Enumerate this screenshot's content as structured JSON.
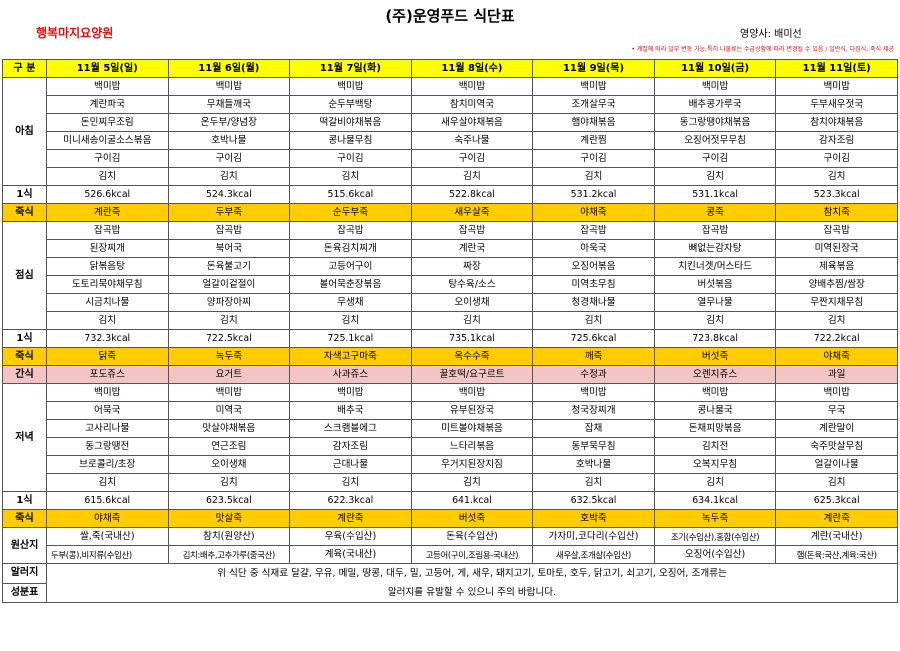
{
  "header": {
    "title": "(주)운영푸드 식단표",
    "facility": "행복마지요양원",
    "dietitian": "영양사: 배미선",
    "note": "• 계절에 따라 일부 변동 가능,특히 나물류는 수급상황에 따라 변경될 수 있음 / 일반식, 다짐식, 죽식 제공"
  },
  "columns": {
    "label": "구 분",
    "days": [
      "11월 5일(일)",
      "11월 6일(월)",
      "11월 7일(화)",
      "11월 8일(수)",
      "11월 9일(목)",
      "11월 10일(금)",
      "11월 11일(토)"
    ]
  },
  "breakfast": {
    "label": "아침",
    "rows": [
      [
        "백미밥",
        "백미밥",
        "백미밥",
        "백미밥",
        "백미밥",
        "백미밥",
        "백미밥"
      ],
      [
        "계란파국",
        "무채들깨국",
        "순두부백탕",
        "참치미역국",
        "조개살무국",
        "배추콩가루국",
        "두부새우젓국"
      ],
      [
        "돈민찌무조림",
        "온두부/양념장",
        "떡갈비야채볶음",
        "새우살야채볶음",
        "햄야채볶음",
        "동그랑땡야채볶음",
        "참치야채볶음"
      ],
      [
        "미니새송이굴소스볶음",
        "호박나물",
        "콩나물무침",
        "숙주나물",
        "계란찜",
        "오징어젓무무침",
        "감자조림"
      ],
      [
        "구이김",
        "구이김",
        "구이김",
        "구이김",
        "구이김",
        "구이김",
        "구이김"
      ],
      [
        "김치",
        "김치",
        "김치",
        "김치",
        "김치",
        "김치",
        "김치"
      ]
    ],
    "kcal_label": "1식",
    "kcal": [
      "526.6kcal",
      "524.3kcal",
      "515.6kcal",
      "522.8kcal",
      "531.2kcal",
      "531.1kcal",
      "523.3kcal"
    ],
    "porridge_label": "죽식",
    "porridge": [
      "계란죽",
      "두부죽",
      "순두부죽",
      "새우살죽",
      "야채죽",
      "콩죽",
      "참치죽"
    ]
  },
  "lunch": {
    "label": "점심",
    "rows": [
      [
        "잡곡밥",
        "잡곡밥",
        "잡곡밥",
        "잡곡밥",
        "잡곡밥",
        "잡곡밥",
        "잡곡밥"
      ],
      [
        "된장찌개",
        "북어국",
        "돈육김치찌개",
        "계란국",
        "아욱국",
        "뼈없는감자탕",
        "미역된장국"
      ],
      [
        "닭볶음탕",
        "돈육불고기",
        "고등어구이",
        "짜장",
        "오징어볶음",
        "치킨너겟/머스타드",
        "제육볶음"
      ],
      [
        "도토리묵야채무침",
        "얼갈이겉절이",
        "볼어묵춘장볶음",
        "탕수육/소스",
        "미역초무침",
        "버섯볶음",
        "양배추찜/쌈장"
      ],
      [
        "시금치나물",
        "양파장아찌",
        "무생채",
        "오이생채",
        "청경채나물",
        "열무나물",
        "무짠지채무침"
      ],
      [
        "김치",
        "김치",
        "김치",
        "김치",
        "김치",
        "김치",
        "김치"
      ]
    ],
    "kcal_label": "1식",
    "kcal": [
      "732.3kcal",
      "722.5kcal",
      "725.1kcal",
      "735.1kcal",
      "725.6kcal",
      "723.8kcal",
      "722.2kcal"
    ],
    "porridge_label": "죽식",
    "porridge": [
      "닭죽",
      "녹두죽",
      "자색고구마죽",
      "옥수수죽",
      "깨죽",
      "버섯죽",
      "야채죽"
    ]
  },
  "snack": {
    "label": "간식",
    "items": [
      "포도쥬스",
      "요거트",
      "사과쥬스",
      "꿀호떡/요구르트",
      "수정과",
      "오렌지쥬스",
      "과일"
    ]
  },
  "dinner": {
    "label": "저녁",
    "rows": [
      [
        "백미밥",
        "백미밥",
        "백미밥",
        "백미밥",
        "백미밥",
        "백미밥",
        "백미밥"
      ],
      [
        "어묵국",
        "미역국",
        "배추국",
        "유부된장국",
        "청국장찌개",
        "콩나물국",
        "무국"
      ],
      [
        "고사리나물",
        "맛살야채볶음",
        "스크램블에그",
        "미트볼야채볶음",
        "잡채",
        "돈채피망볶음",
        "계란말이"
      ],
      [
        "동그랑땡전",
        "연근조림",
        "감자조림",
        "느타리볶음",
        "동부묵무침",
        "김치전",
        "숙주맛살무침"
      ],
      [
        "브로콜리/초장",
        "오이생채",
        "근대나물",
        "우거지된장지짐",
        "호박나물",
        "오복지무침",
        "얼갈이나물"
      ],
      [
        "김치",
        "김치",
        "김치",
        "김치",
        "김치",
        "김치",
        "김치"
      ]
    ],
    "kcal_label": "1식",
    "kcal": [
      "615.6kcal",
      "623.5kcal",
      "622.3kcal",
      "641.kcal",
      "632.5kcal",
      "634.1kcal",
      "625.3kcal"
    ],
    "porridge_label": "죽식",
    "porridge": [
      "야채죽",
      "맛살죽",
      "계란죽",
      "버섯죽",
      "호박죽",
      "녹두죽",
      "계란죽"
    ]
  },
  "origin": {
    "label": "원산지",
    "row1": [
      "쌀,죽(국내산)",
      "참치(원양산)",
      "우육(수입산)",
      "돈육(수입산)",
      "가자미,코다리(수입산)",
      "조기(수입산),홍합(수입산)",
      "계란(국내산)"
    ],
    "row2": [
      "두부(콩),비지류(수입산)",
      "김치:배추,고추가루(중국산)",
      "계육(국내산)",
      "고등어(구이,조림용-국내산)",
      "새우살,조개살(수입산)",
      "오징어(수입산)",
      "햄(돈육:국산,계육:국산)"
    ]
  },
  "allergy": {
    "label1": "알러지",
    "label2": "성분표",
    "line1": "위 식단 중 식재료 달걀, 우유, 메밀, 땅콩, 대두, 밀, 고등어, 게, 새우, 돼지고기, 토마토, 호두, 닭고기, 쇠고기, 오징어, 조개류는",
    "line2": "알러지를 유발할 수 있으니 주의 바랍니다."
  }
}
